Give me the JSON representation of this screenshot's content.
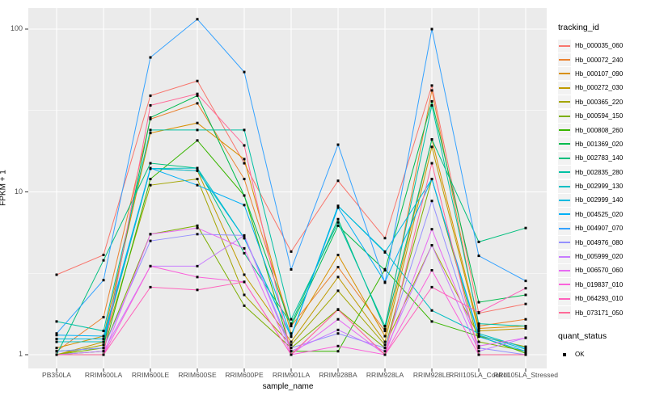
{
  "chart_data": {
    "type": "line",
    "title": "",
    "xlabel": "sample_name",
    "ylabel": "FPKM + 1",
    "y_scale": "log10",
    "y_ticks": [
      "100",
      "10",
      "1"
    ],
    "ylim": [
      0.82,
      135
    ],
    "grid": "on",
    "legend_position": "right",
    "legend_title": "tracking_id",
    "quant_legend_title": "quant_status",
    "quant_legend_value": "OK",
    "marker": "black-square",
    "categories": [
      "PB350LA",
      "RRIM600LA",
      "RRIM600LE",
      "RRIM600SE",
      "RRIM600PE",
      "RRIM901LA",
      "RRIM928BA",
      "RRIM928LA",
      "RRIM928LE",
      "RRII105LA_Control",
      "RRII105LA_Stressed"
    ],
    "series": [
      {
        "name": "Hb_000035_060",
        "color": "#F8766D",
        "values": [
          3.1,
          4.1,
          39,
          48,
          15,
          4.3,
          11.7,
          5.2,
          45,
          1.8,
          2.05
        ]
      },
      {
        "name": "Hb_000072_240",
        "color": "#EA8331",
        "values": [
          1.05,
          1.7,
          28,
          35,
          12,
          1.5,
          3.45,
          1.4,
          42,
          1.5,
          1.65
        ]
      },
      {
        "name": "Hb_000107_090",
        "color": "#D89000",
        "values": [
          1.1,
          1.3,
          23,
          26.5,
          15.9,
          1.35,
          4.1,
          1.3,
          21,
          1.45,
          1.5
        ]
      },
      {
        "name": "Hb_000272_030",
        "color": "#C09B00",
        "values": [
          1.0,
          1.2,
          13.9,
          13.5,
          3.1,
          1.2,
          3.0,
          1.2,
          18.9,
          1.4,
          1.45
        ]
      },
      {
        "name": "Hb_000365_220",
        "color": "#A3A500",
        "values": [
          1.0,
          1.15,
          11,
          12,
          2.33,
          1.15,
          2.47,
          1.15,
          4.7,
          1.3,
          1.12
        ]
      },
      {
        "name": "Hb_000594_150",
        "color": "#7CAE00",
        "values": [
          1.0,
          1.1,
          5.5,
          6.2,
          2.0,
          1.1,
          1.9,
          1.1,
          12,
          1.2,
          1.05
        ]
      },
      {
        "name": "Hb_000808_260",
        "color": "#39B600",
        "values": [
          1.0,
          1.05,
          12,
          20.7,
          9.5,
          1.05,
          1.05,
          3.35,
          1.6,
          1.3,
          1.02
        ]
      },
      {
        "name": "Hb_001369_020",
        "color": "#00BB4E",
        "values": [
          1.05,
          1.1,
          28.6,
          39,
          9.5,
          1.5,
          6.2,
          3.3,
          36,
          2.1,
          2.33
        ]
      },
      {
        "name": "Hb_002783_140",
        "color": "#00BF7D",
        "values": [
          1.0,
          3.8,
          15,
          14,
          4.2,
          1.55,
          6.8,
          1.44,
          21,
          4.93,
          6.0
        ]
      },
      {
        "name": "Hb_002835_280",
        "color": "#00C1A3",
        "values": [
          1.6,
          1.4,
          24,
          24,
          24,
          1.65,
          6.5,
          1.5,
          34,
          1.55,
          1.5
        ]
      },
      {
        "name": "Hb_002999_130",
        "color": "#00BFC4",
        "values": [
          1.2,
          1.2,
          13.9,
          14,
          5.2,
          1.3,
          8.2,
          4.3,
          1.87,
          1.35,
          1.1
        ]
      },
      {
        "name": "Hb_002999_140",
        "color": "#00BAE0",
        "values": [
          1.25,
          1.25,
          13.9,
          13.5,
          5.2,
          1.29,
          8.2,
          4.25,
          12,
          1.32,
          1.08
        ]
      },
      {
        "name": "Hb_004525_020",
        "color": "#00B0F6",
        "values": [
          1.32,
          1.3,
          14,
          11,
          8.3,
          1.3,
          8.0,
          2.8,
          12,
          1.29,
          1.05
        ]
      },
      {
        "name": "Hb_004907_070",
        "color": "#35A2FF",
        "values": [
          1.35,
          2.87,
          67,
          115,
          54.5,
          3.34,
          19.5,
          2.77,
          100,
          4.05,
          2.84
        ]
      },
      {
        "name": "Hb_004976_080",
        "color": "#9590FF",
        "values": [
          1.05,
          1.1,
          5.0,
          5.5,
          5.4,
          1.1,
          1.35,
          1.1,
          8.8,
          1.1,
          1.0
        ]
      },
      {
        "name": "Hb_005999_020",
        "color": "#C77CFF",
        "values": [
          1.0,
          1.05,
          3.5,
          3.5,
          5.4,
          1.05,
          1.42,
          1.05,
          4.7,
          1.05,
          1.27
        ]
      },
      {
        "name": "Hb_006570_060",
        "color": "#E76BF3",
        "values": [
          1.0,
          1.0,
          5.5,
          6.0,
          4.5,
          1.0,
          1.65,
          1.0,
          5.9,
          1.13,
          1.27
        ]
      },
      {
        "name": "Hb_019837_010",
        "color": "#FA62DB",
        "values": [
          1.0,
          1.0,
          3.5,
          3.0,
          2.8,
          1.0,
          1.13,
          1.0,
          3.3,
          1.0,
          1.0
        ]
      },
      {
        "name": "Hb_064293_010",
        "color": "#FF62BC",
        "values": [
          1.0,
          1.0,
          2.6,
          2.5,
          2.8,
          1.0,
          1.89,
          1.0,
          2.6,
          1.82,
          2.56
        ]
      },
      {
        "name": "Hb_073171_050",
        "color": "#FF6A98",
        "values": [
          1.0,
          1.0,
          34,
          40,
          19.3,
          1.0,
          1.89,
          1.0,
          15,
          1.0,
          1.0
        ]
      }
    ],
    "panel_bg": "#EBEBEB",
    "grid_color": "#FFFFFF",
    "tick_color": "#333333",
    "axis_text_color": "#4D4D4D"
  }
}
